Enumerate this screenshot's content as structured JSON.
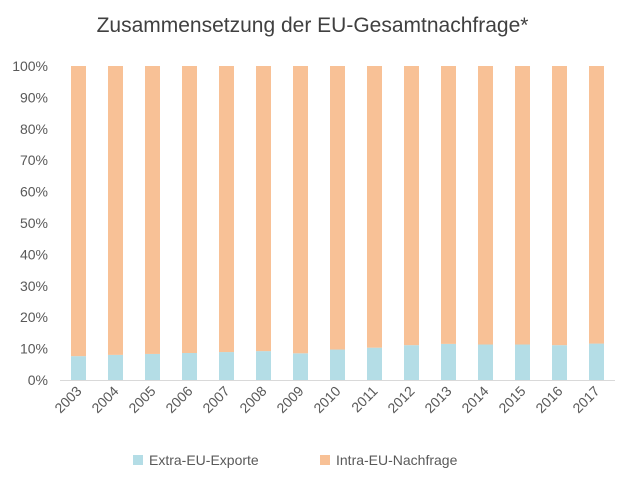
{
  "chart_data": {
    "type": "bar",
    "stacked": true,
    "normalized": true,
    "title": "Zusammensetzung der EU-Gesamtnachfrage*",
    "xlabel": "",
    "ylabel": "",
    "categories": [
      "2003",
      "2004",
      "2005",
      "2006",
      "2007",
      "2008",
      "2009",
      "2010",
      "2011",
      "2012",
      "2013",
      "2014",
      "2015",
      "2016",
      "2017"
    ],
    "series": [
      {
        "name": "Extra-EU-Exporte",
        "color": "#b4dde6",
        "values": [
          7.6,
          8.0,
          8.3,
          8.6,
          8.9,
          9.2,
          8.5,
          9.7,
          10.3,
          11.1,
          11.5,
          11.3,
          11.3,
          11.1,
          11.6
        ]
      },
      {
        "name": "Intra-EU-Nachfrage",
        "color": "#f8c196",
        "values": [
          92.4,
          92.0,
          91.7,
          91.4,
          91.1,
          90.8,
          91.5,
          90.3,
          89.7,
          88.9,
          88.5,
          88.7,
          88.7,
          88.9,
          88.4
        ]
      }
    ],
    "ylim": [
      0,
      100
    ],
    "yticks": [
      "0%",
      "10%",
      "20%",
      "30%",
      "40%",
      "50%",
      "60%",
      "70%",
      "80%",
      "90%",
      "100%"
    ],
    "grid": false,
    "legend_position": "bottom"
  }
}
